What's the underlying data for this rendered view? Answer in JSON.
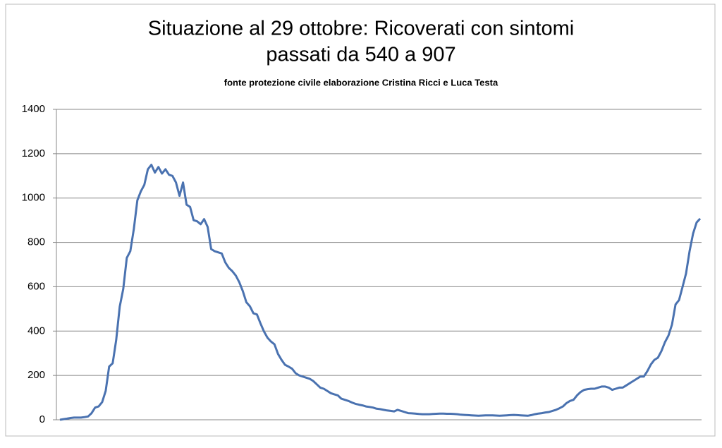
{
  "chart_data": {
    "type": "line",
    "title": [
      "Situazione al 29 ottobre: Ricoverati con sintomi",
      "passati da 540 a 907"
    ],
    "subtitle": "fonte protezione civile elaborazione Cristina Ricci e Luca Testa",
    "ylim": [
      0,
      1400
    ],
    "yticks": [
      0,
      200,
      400,
      600,
      800,
      1000,
      1200,
      1400
    ],
    "grid": true,
    "color": "#4a72b0",
    "values": [
      0,
      3,
      5,
      8,
      10,
      10,
      10,
      12,
      15,
      30,
      55,
      60,
      80,
      130,
      240,
      255,
      360,
      510,
      590,
      730,
      760,
      860,
      990,
      1030,
      1060,
      1130,
      1150,
      1115,
      1140,
      1110,
      1130,
      1105,
      1100,
      1070,
      1010,
      1070,
      970,
      960,
      900,
      895,
      882,
      905,
      870,
      770,
      760,
      755,
      750,
      710,
      685,
      670,
      650,
      620,
      580,
      530,
      512,
      480,
      475,
      435,
      398,
      370,
      353,
      340,
      297,
      270,
      248,
      240,
      230,
      210,
      200,
      195,
      190,
      185,
      175,
      160,
      145,
      140,
      130,
      120,
      115,
      110,
      95,
      90,
      85,
      78,
      72,
      68,
      65,
      60,
      58,
      55,
      50,
      48,
      45,
      42,
      40,
      38,
      45,
      40,
      35,
      30,
      29,
      28,
      26,
      25,
      25,
      25,
      26,
      27,
      28,
      28,
      27,
      27,
      26,
      25,
      23,
      22,
      21,
      20,
      19,
      18,
      19,
      20,
      20,
      20,
      19,
      18,
      19,
      20,
      21,
      22,
      21,
      20,
      19,
      18,
      21,
      25,
      28,
      30,
      33,
      35,
      40,
      45,
      52,
      60,
      75,
      85,
      90,
      110,
      125,
      135,
      138,
      140,
      140,
      145,
      150,
      150,
      145,
      135,
      140,
      145,
      145,
      155,
      165,
      175,
      185,
      195,
      195,
      220,
      250,
      270,
      280,
      310,
      350,
      380,
      430,
      520,
      540,
      600,
      660,
      760,
      840,
      890,
      907
    ]
  }
}
